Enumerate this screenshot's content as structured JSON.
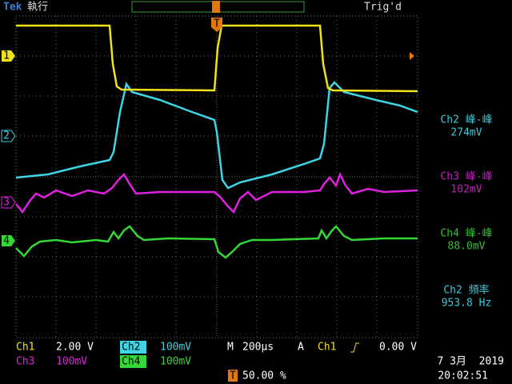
{
  "header": {
    "brand": "Tek",
    "state": "執行",
    "trigger_status": "Trig'd"
  },
  "channel_markers": [
    "1",
    "2",
    "3",
    "4"
  ],
  "trigger_marker": "T",
  "measurements": [
    {
      "label": "Ch2 峰-峰",
      "value": "274mV"
    },
    {
      "label": "Ch3 峰-峰",
      "value": "102mV"
    },
    {
      "label": "Ch4 峰-峰",
      "value": "88.0mV"
    },
    {
      "label": "Ch2 頻率",
      "value": "953.8 Hz"
    }
  ],
  "settings": {
    "ch1": {
      "label": "Ch1",
      "scale": "2.00 V"
    },
    "ch2": {
      "label": "Ch2",
      "scale": "100mV"
    },
    "ch3": {
      "label": "Ch3",
      "scale": "100mV"
    },
    "ch4": {
      "label": "Ch4",
      "scale": "100mV"
    },
    "timebase": {
      "label": "M",
      "scale": "200µs"
    },
    "trigger": {
      "mode": "A",
      "source": "Ch1",
      "level": "0.00 V"
    },
    "trigger_position": "50.00 %"
  },
  "datetime": {
    "date": "7 3月  2019",
    "time": "20:02:51"
  }
}
